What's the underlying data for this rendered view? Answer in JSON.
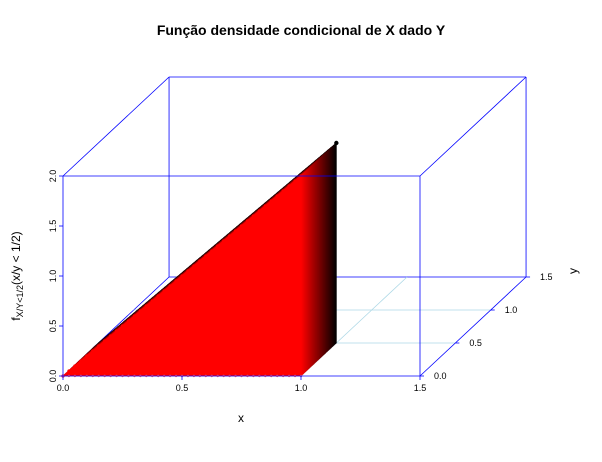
{
  "chart_data": {
    "type": "scatter3d",
    "title": "Função densidade condicional de X dado Y",
    "xlabel": "x",
    "ylabel": "y",
    "zlabel_main": "f",
    "zlabel_sub": "X/Y<1/2",
    "zlabel_rest": "(x/y < 1/2)",
    "xlim": [
      0,
      1.5
    ],
    "ylim": [
      0,
      1.5
    ],
    "zlim": [
      0,
      2.0
    ],
    "x_ticks": [
      "0.0",
      "0.5",
      "1.0",
      "1.5"
    ],
    "y_ticks": [
      "0.0",
      "0.5",
      "1.0",
      "1.5"
    ],
    "z_ticks": [
      "0.0",
      "0.5",
      "1.0",
      "1.5",
      "2.0"
    ],
    "x_range": [
      0,
      1
    ],
    "y_range": [
      0,
      0.5
    ],
    "density": "2x for 0<x<1, 0<y<1/2",
    "colors": {
      "box": "#0000ff",
      "grid": "#add8e6",
      "near": "#ff0000",
      "far": "#000000"
    }
  }
}
